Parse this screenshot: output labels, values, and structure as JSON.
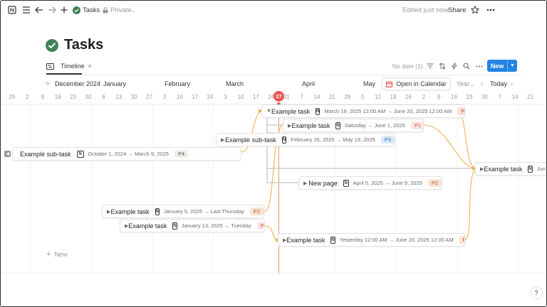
{
  "topbar": {
    "app_icon": "notion-icon",
    "breadcrumb_title": "Tasks",
    "privacy": "Private",
    "edited": "Edited just now",
    "share": "Share"
  },
  "page": {
    "title": "Tasks"
  },
  "view": {
    "tab_label": "Timeline",
    "no_date": "No date (1)",
    "new_button": "New"
  },
  "header": {
    "months": [
      "December 2024",
      "January",
      "February",
      "March",
      "April",
      "May"
    ],
    "open_calendar": "Open in Calendar",
    "scale": "Year",
    "today": "Today",
    "today_day": "27",
    "days": [
      "25",
      "2",
      "9",
      "16",
      "23",
      "30",
      "6",
      "13",
      "20",
      "27",
      "3",
      "10",
      "17",
      "24",
      "3",
      "10",
      "17",
      "24",
      "31",
      "7",
      "14",
      "21",
      "28",
      "5",
      "12",
      "19",
      "26",
      "2",
      "9",
      "16",
      "23",
      "30",
      "7",
      "14",
      "21"
    ]
  },
  "tasks": [
    {
      "name": "Example task",
      "dates": "March 19, 2025 12:00 AM → June 20, 2025 12:00 AM",
      "priority": "P2",
      "expanded": true
    },
    {
      "name": "Example task",
      "dates": "Saturday → June 1, 2025",
      "priority": "P1"
    },
    {
      "name": "Example sub-task",
      "dates": "February 26, 2025 → May 19, 2025",
      "priority": "P3"
    },
    {
      "name": "Example sub-task",
      "dates": "October 1, 2024 → March 9, 2025",
      "priority": "P4"
    },
    {
      "name": "Example task",
      "dates": "Jun",
      "priority": ""
    },
    {
      "name": "New page",
      "dates": "April 5, 2025 → June 9, 2025",
      "priority": "P2"
    },
    {
      "name": "Example task",
      "dates": "January 5, 2025 → Last Thursday",
      "priority": "P2"
    },
    {
      "name": "Example task",
      "dates": "January 13, 2025 → Tuesday",
      "priority": "P1"
    },
    {
      "name": "Example task",
      "dates": "Yesterday 12:00 AM → June 20, 2025 12:00 AM",
      "priority": "P2"
    }
  ],
  "add_new": "New",
  "colors": {
    "accent": "#2383e2",
    "today": "#eb5757",
    "dependency": "#f0b24a",
    "title_icon": "#3d8455"
  }
}
